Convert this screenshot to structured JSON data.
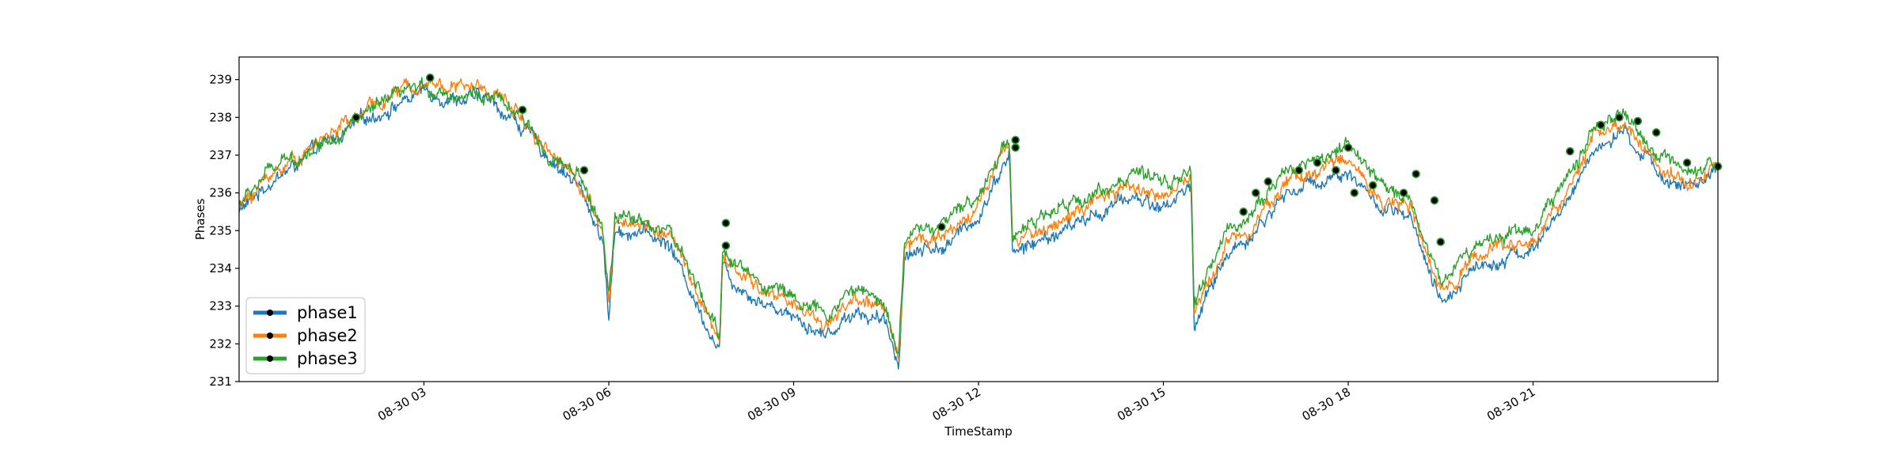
{
  "chart_data": {
    "type": "line",
    "title": "",
    "xlabel": "TimeStamp",
    "ylabel": "Phases",
    "xlim_hours": [
      0,
      24
    ],
    "ylim": [
      231,
      239.6
    ],
    "x_ticks": [
      {
        "hour": 3,
        "label": "08-30 03"
      },
      {
        "hour": 6,
        "label": "08-30 06"
      },
      {
        "hour": 9,
        "label": "08-30 09"
      },
      {
        "hour": 12,
        "label": "08-30 12"
      },
      {
        "hour": 15,
        "label": "08-30 15"
      },
      {
        "hour": 18,
        "label": "08-30 18"
      },
      {
        "hour": 21,
        "label": "08-30 21"
      }
    ],
    "y_ticks": [
      231,
      232,
      233,
      234,
      235,
      236,
      237,
      238,
      239
    ],
    "legend": {
      "placement": "lower-left",
      "entries": [
        "phase1",
        "phase2",
        "phase3"
      ]
    },
    "grid": false,
    "series": [
      {
        "name": "phase1",
        "color": "#1f77b4",
        "x_hours": [
          0,
          0.5,
          1,
          1.5,
          2,
          2.5,
          3,
          3.5,
          4,
          4.5,
          5,
          5.5,
          5.9,
          6.0,
          6.1,
          6.5,
          7,
          7.5,
          7.8,
          7.85,
          8,
          8.5,
          9,
          9.5,
          10,
          10.5,
          10.7,
          10.8,
          11,
          11.5,
          12,
          12.5,
          12.55,
          13,
          13.5,
          14,
          14.5,
          15,
          15.45,
          15.5,
          16,
          16.5,
          17,
          17.5,
          18,
          18.5,
          19,
          19.5,
          20,
          20.5,
          21,
          21.5,
          22,
          22.5,
          23,
          23.5,
          24
        ],
        "values": [
          235.5,
          236.3,
          236.8,
          237.4,
          237.9,
          238.3,
          238.7,
          238.5,
          238.5,
          237.9,
          237.0,
          236.2,
          234.8,
          232.7,
          235.0,
          235.0,
          234.6,
          232.8,
          231.9,
          234.1,
          233.7,
          233.1,
          232.8,
          232.2,
          232.9,
          232.5,
          231.5,
          234.3,
          234.5,
          234.6,
          235.4,
          237.1,
          234.4,
          234.7,
          235.1,
          235.5,
          235.9,
          235.6,
          236.2,
          232.5,
          234.3,
          235.0,
          236.0,
          236.3,
          236.6,
          235.6,
          235.3,
          233.0,
          234.0,
          234.3,
          234.5,
          235.6,
          237.2,
          237.5,
          236.6,
          236.1,
          236.5
        ]
      },
      {
        "name": "phase2",
        "color": "#ff7f0e",
        "x_hours": [
          0,
          0.5,
          1,
          1.5,
          2,
          2.5,
          3,
          3.5,
          4,
          4.5,
          5,
          5.5,
          5.9,
          6.0,
          6.1,
          6.5,
          7,
          7.5,
          7.8,
          7.85,
          8,
          8.5,
          9,
          9.5,
          10,
          10.5,
          10.7,
          10.8,
          11,
          11.5,
          12,
          12.5,
          12.55,
          13,
          13.5,
          14,
          14.5,
          15,
          15.45,
          15.5,
          16,
          16.5,
          17,
          17.5,
          18,
          18.5,
          19,
          19.5,
          20,
          20.5,
          21,
          21.5,
          22,
          22.5,
          23,
          23.5,
          24
        ],
        "values": [
          235.6,
          236.5,
          237.0,
          237.6,
          238.1,
          238.6,
          239.0,
          238.8,
          238.8,
          238.2,
          237.2,
          236.4,
          235.0,
          233.0,
          235.2,
          235.2,
          234.9,
          233.1,
          232.0,
          234.3,
          234.0,
          233.4,
          233.1,
          232.5,
          233.2,
          232.8,
          231.7,
          234.6,
          234.8,
          234.9,
          235.7,
          237.3,
          234.7,
          235.0,
          235.4,
          235.8,
          236.2,
          235.9,
          236.4,
          232.8,
          234.6,
          235.3,
          236.3,
          236.6,
          236.9,
          235.9,
          235.6,
          233.3,
          234.3,
          234.6,
          234.7,
          235.9,
          237.5,
          237.8,
          236.8,
          236.3,
          236.6
        ]
      },
      {
        "name": "phase3",
        "color": "#2ca02c",
        "x_hours": [
          0,
          0.5,
          1,
          1.5,
          2,
          2.5,
          3,
          3.5,
          4,
          4.5,
          5,
          5.5,
          5.9,
          6.0,
          6.1,
          6.5,
          7,
          7.5,
          7.8,
          7.85,
          8,
          8.5,
          9,
          9.5,
          10,
          10.5,
          10.7,
          10.8,
          11,
          11.5,
          12,
          12.5,
          12.55,
          13,
          13.5,
          14,
          14.5,
          15,
          15.45,
          15.5,
          16,
          16.5,
          17,
          17.5,
          18,
          18.5,
          19,
          19.5,
          20,
          20.5,
          21,
          21.5,
          22,
          22.5,
          23,
          23.5,
          24
        ],
        "values": [
          235.7,
          236.6,
          237.0,
          237.5,
          238.0,
          238.5,
          238.8,
          238.6,
          238.6,
          238.1,
          237.1,
          236.4,
          235.1,
          233.2,
          235.3,
          235.3,
          235.0,
          233.2,
          232.2,
          234.6,
          234.2,
          233.6,
          233.3,
          232.7,
          233.5,
          233.0,
          231.8,
          234.8,
          235.0,
          235.2,
          236.0,
          237.5,
          234.9,
          235.3,
          235.7,
          236.1,
          236.5,
          236.2,
          236.6,
          233.0,
          234.9,
          235.6,
          236.6,
          236.9,
          237.3,
          236.2,
          235.9,
          233.6,
          234.6,
          234.9,
          235.1,
          236.2,
          237.8,
          238.0,
          237.0,
          236.4,
          236.7
        ]
      }
    ],
    "markers": {
      "color": "#000000",
      "description_points": [
        {
          "hour": 1.9,
          "value": 238.0
        },
        {
          "hour": 3.1,
          "value": 239.05
        },
        {
          "hour": 4.6,
          "value": 238.2
        },
        {
          "hour": 5.6,
          "value": 236.6
        },
        {
          "hour": 7.9,
          "value": 235.2
        },
        {
          "hour": 7.9,
          "value": 234.6
        },
        {
          "hour": 11.4,
          "value": 235.1
        },
        {
          "hour": 12.6,
          "value": 237.4
        },
        {
          "hour": 12.6,
          "value": 237.2
        },
        {
          "hour": 16.3,
          "value": 235.5
        },
        {
          "hour": 16.5,
          "value": 236.0
        },
        {
          "hour": 16.7,
          "value": 236.3
        },
        {
          "hour": 17.2,
          "value": 236.6
        },
        {
          "hour": 17.5,
          "value": 236.8
        },
        {
          "hour": 17.8,
          "value": 236.6
        },
        {
          "hour": 18.0,
          "value": 237.2
        },
        {
          "hour": 18.1,
          "value": 236.0
        },
        {
          "hour": 18.4,
          "value": 236.2
        },
        {
          "hour": 18.9,
          "value": 236.0
        },
        {
          "hour": 19.1,
          "value": 236.5
        },
        {
          "hour": 19.4,
          "value": 235.8
        },
        {
          "hour": 19.5,
          "value": 234.7
        },
        {
          "hour": 21.6,
          "value": 237.1
        },
        {
          "hour": 22.1,
          "value": 237.8
        },
        {
          "hour": 22.4,
          "value": 238.0
        },
        {
          "hour": 22.7,
          "value": 237.9
        },
        {
          "hour": 23.0,
          "value": 237.6
        },
        {
          "hour": 23.5,
          "value": 236.8
        },
        {
          "hour": 24.0,
          "value": 236.7
        }
      ]
    }
  }
}
